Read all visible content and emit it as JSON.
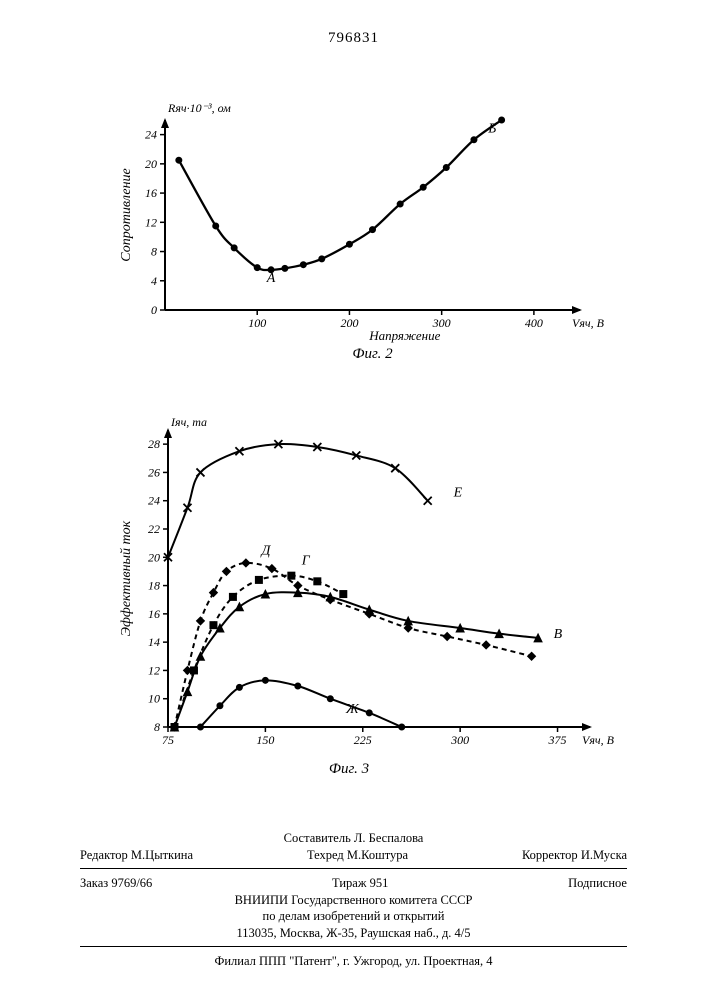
{
  "doc_number": "796831",
  "fig2": {
    "type": "line",
    "title": "Фиг. 2",
    "y_unit_label": "Rяч·10⁻³, ом",
    "y_axis_label": "Сопротивление",
    "x_axis_label": "Напряжение",
    "x_unit_label": "Vяч, В",
    "xlim": [
      0,
      450
    ],
    "ylim": [
      0,
      26
    ],
    "xticks": [
      0,
      100,
      200,
      300,
      400
    ],
    "yticks": [
      0,
      4,
      8,
      12,
      16,
      20,
      24
    ],
    "series": {
      "marker": "circle",
      "marker_fill": "#000000",
      "marker_size": 6,
      "line_color": "#000000",
      "line_width": 2.3,
      "points": [
        [
          15,
          20.5
        ],
        [
          55,
          11.5
        ],
        [
          75,
          8.5
        ],
        [
          100,
          5.8
        ],
        [
          115,
          5.5
        ],
        [
          130,
          5.7
        ],
        [
          150,
          6.2
        ],
        [
          170,
          7.0
        ],
        [
          200,
          9.0
        ],
        [
          225,
          11.0
        ],
        [
          255,
          14.5
        ],
        [
          280,
          16.8
        ],
        [
          305,
          19.5
        ],
        [
          335,
          23.3
        ],
        [
          365,
          26.0
        ]
      ],
      "labels": [
        {
          "text": "А",
          "x": 115,
          "y": 3.8,
          "fontsize": 14
        },
        {
          "text": "Б",
          "x": 355,
          "y": 24.3,
          "fontsize": 14
        }
      ]
    },
    "axis_color": "#000000",
    "axis_width": 2,
    "tick_fontsize": 12,
    "label_fontsize": 14,
    "background_color": "#ffffff"
  },
  "fig3": {
    "type": "line",
    "title": "Фиг. 3",
    "y_unit_label": "Iяч, ma",
    "y_axis_label": "Эффективный ток",
    "x_unit_label": "Vяч, В",
    "xlim": [
      75,
      400
    ],
    "ylim": [
      8,
      29
    ],
    "xticks": [
      75,
      150,
      225,
      300,
      375
    ],
    "yticks": [
      8,
      10,
      12,
      14,
      16,
      18,
      20,
      22,
      24,
      26,
      28
    ],
    "axis_color": "#000000",
    "axis_width": 2,
    "tick_fontsize": 12,
    "label_fontsize": 14,
    "background_color": "#ffffff",
    "series": [
      {
        "name": "E",
        "marker": "x",
        "marker_size": 8,
        "line_width": 2,
        "line_color": "#000000",
        "points": [
          [
            75,
            20
          ],
          [
            90,
            23.5
          ],
          [
            100,
            26
          ],
          [
            130,
            27.5
          ],
          [
            160,
            28
          ],
          [
            190,
            27.8
          ],
          [
            220,
            27.2
          ],
          [
            250,
            26.3
          ],
          [
            275,
            24
          ]
        ],
        "label": {
          "text": "E",
          "x": 295,
          "y": 24.3
        }
      },
      {
        "name": "Д",
        "marker": "diamond",
        "marker_size": 8,
        "line_width": 2,
        "line_color": "#000000",
        "dash": "5,4",
        "points": [
          [
            80,
            8
          ],
          [
            90,
            12
          ],
          [
            100,
            15.5
          ],
          [
            110,
            17.5
          ],
          [
            120,
            19
          ],
          [
            135,
            19.6
          ],
          [
            155,
            19.2
          ],
          [
            175,
            18
          ],
          [
            200,
            17
          ],
          [
            230,
            16
          ],
          [
            260,
            15
          ],
          [
            290,
            14.4
          ],
          [
            320,
            13.8
          ],
          [
            355,
            13
          ]
        ],
        "label": {
          "text": "Д",
          "x": 147,
          "y": 20.2
        }
      },
      {
        "name": "Г",
        "marker": "square",
        "marker_size": 7,
        "line_width": 2,
        "line_color": "#000000",
        "dash": "5,4",
        "points": [
          [
            80,
            8
          ],
          [
            95,
            12
          ],
          [
            110,
            15.2
          ],
          [
            125,
            17.2
          ],
          [
            145,
            18.4
          ],
          [
            170,
            18.7
          ],
          [
            190,
            18.3
          ],
          [
            210,
            17.4
          ]
        ],
        "label": {
          "text": "Г",
          "x": 178,
          "y": 19.5
        }
      },
      {
        "name": "В",
        "marker": "triangle",
        "marker_size": 8,
        "line_width": 2,
        "line_color": "#000000",
        "points": [
          [
            80,
            8
          ],
          [
            90,
            10.5
          ],
          [
            100,
            13
          ],
          [
            115,
            15
          ],
          [
            130,
            16.5
          ],
          [
            150,
            17.4
          ],
          [
            175,
            17.5
          ],
          [
            200,
            17.2
          ],
          [
            230,
            16.3
          ],
          [
            260,
            15.5
          ],
          [
            300,
            15
          ],
          [
            330,
            14.6
          ],
          [
            360,
            14.3
          ]
        ],
        "label": {
          "text": "В",
          "x": 372,
          "y": 14.3
        }
      },
      {
        "name": "Ж",
        "marker": "circle",
        "marker_size": 6,
        "line_width": 2,
        "line_color": "#000000",
        "points": [
          [
            100,
            8
          ],
          [
            115,
            9.5
          ],
          [
            130,
            10.8
          ],
          [
            150,
            11.3
          ],
          [
            175,
            10.9
          ],
          [
            200,
            10
          ],
          [
            230,
            9
          ],
          [
            255,
            8
          ]
        ],
        "label": {
          "text": "Ж",
          "x": 212,
          "y": 9.0
        }
      }
    ]
  },
  "footer": {
    "compiler": "Составитель Л. Беспалова",
    "editor_label": "Редактор",
    "editor": "М.Цыткина",
    "tech_label": "Техред",
    "tech": "М.Коштура",
    "corrector_label": "Корректор",
    "corrector": "И.Муска",
    "order_label": "Заказ",
    "order": "9769/66",
    "tirage_label": "Тираж",
    "tirage": "951",
    "subscription": "Подписное",
    "org1": "ВНИИПИ Государственного комитета СССР",
    "org2": "по делам изобретений и открытий",
    "addr": "113035, Москва, Ж-35, Раушская наб., д. 4/5",
    "branch": "Филиал ППП \"Патент\", г. Ужгород, ул. Проектная, 4"
  }
}
